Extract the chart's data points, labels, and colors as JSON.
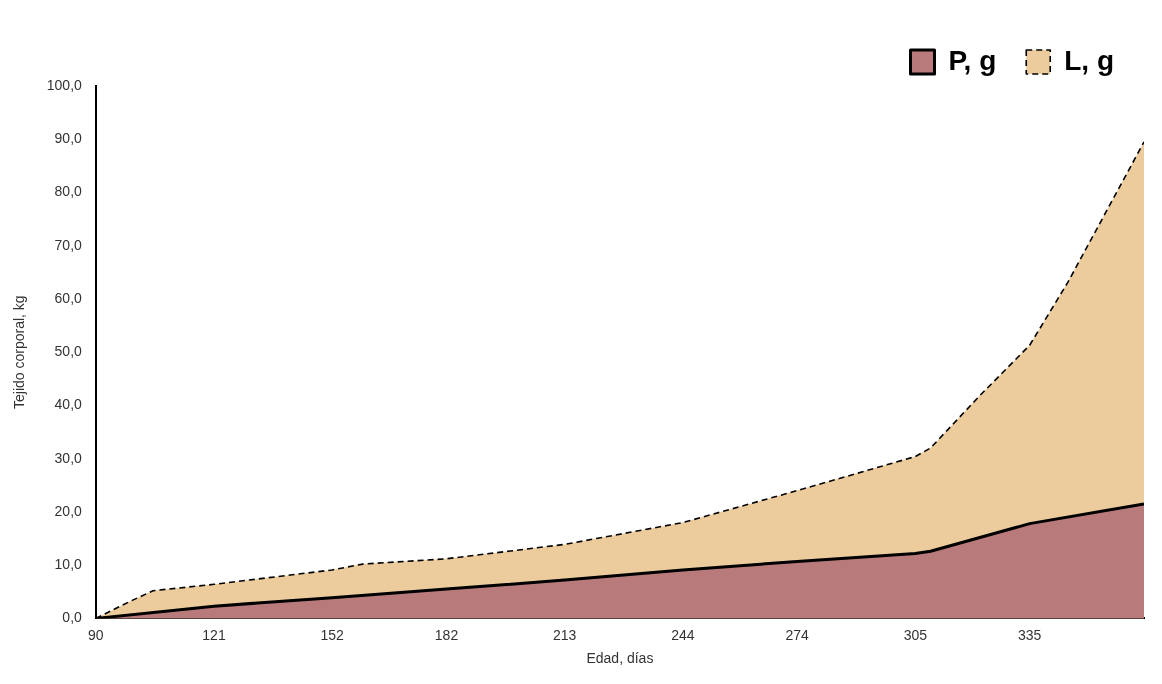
{
  "chart_data": {
    "type": "area",
    "xlabel": "Edad, días",
    "ylabel": "Tejido corporal, kg",
    "xlim": [
      90,
      365
    ],
    "xticks": [
      90,
      121,
      152,
      182,
      213,
      244,
      274,
      305,
      335
    ],
    "ylim": [
      0,
      100
    ],
    "yticks": [
      {
        "value": 0,
        "label": "0,0"
      },
      {
        "value": 10,
        "label": "10,0"
      },
      {
        "value": 20,
        "label": "20,0"
      },
      {
        "value": 30,
        "label": "30,0"
      },
      {
        "value": 40,
        "label": "40,0"
      },
      {
        "value": 50,
        "label": "50,0"
      },
      {
        "value": 60,
        "label": "60,0"
      },
      {
        "value": 70,
        "label": "70,0"
      },
      {
        "value": 80,
        "label": "80,0"
      },
      {
        "value": 90,
        "label": "90,0"
      },
      {
        "value": 100,
        "label": "100,0"
      }
    ],
    "grid": false,
    "legend": "top right",
    "marker": "none",
    "series": [
      {
        "name": "L, g",
        "color": "#eccb9c",
        "line_style": "dashed",
        "x": [
          90,
          99,
          105,
          121,
          152,
          160,
          182,
          213,
          244,
          274,
          305,
          309,
          322,
          335,
          345,
          365
        ],
        "values": [
          0,
          3.2,
          5.2,
          6.4,
          9.1,
          10.2,
          11.2,
          13.9,
          18.0,
          24.0,
          30.4,
          32.0,
          41.9,
          51.3,
          63.1,
          89.5
        ]
      },
      {
        "name": "P, g",
        "color": "#b87a7a",
        "line_style": "solid",
        "x": [
          90,
          121,
          152,
          182,
          213,
          244,
          274,
          305,
          309,
          335,
          365
        ],
        "values": [
          0,
          2.3,
          3.9,
          5.5,
          7.2,
          9.1,
          10.7,
          12.2,
          12.6,
          17.8,
          21.5
        ]
      }
    ]
  }
}
